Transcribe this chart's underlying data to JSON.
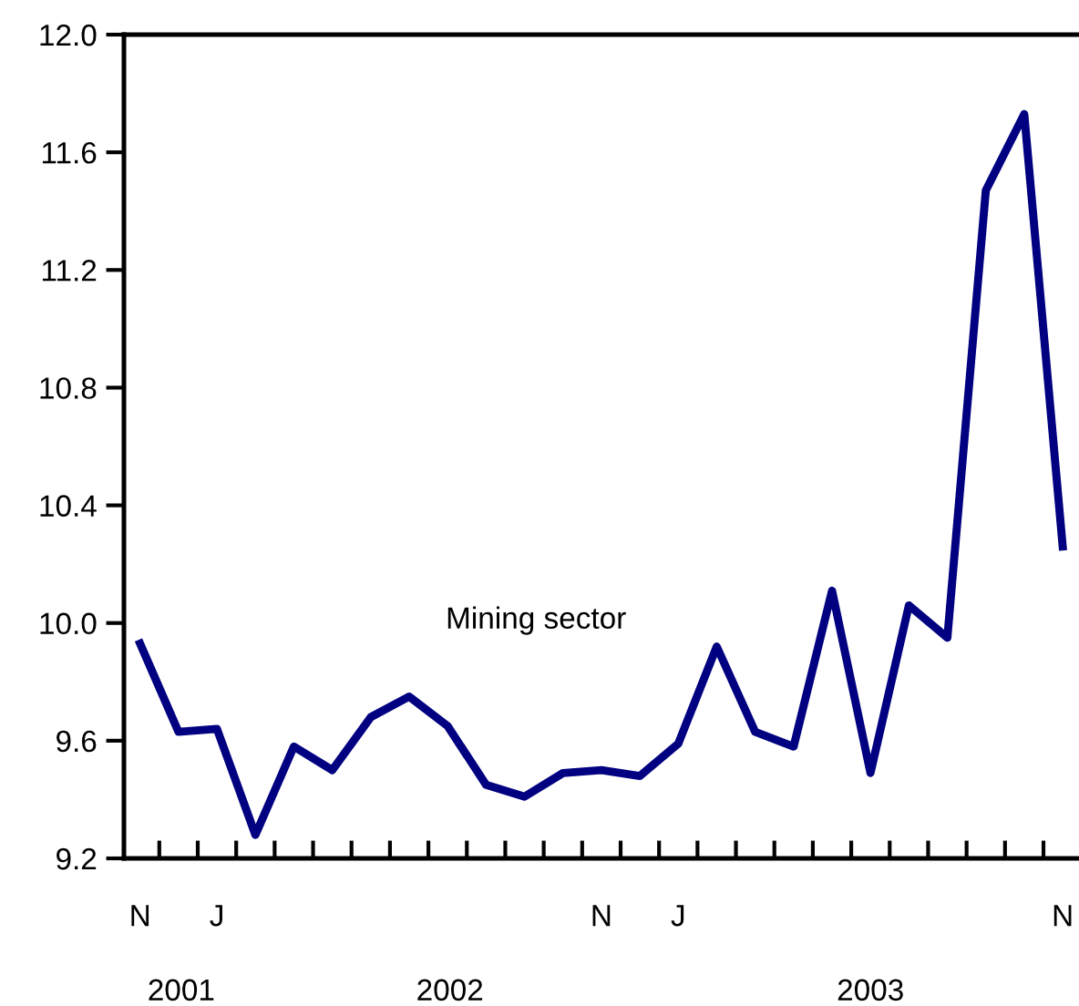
{
  "chart_data": {
    "type": "line",
    "categories": [
      "N",
      null,
      "J",
      null,
      null,
      null,
      null,
      null,
      null,
      null,
      null,
      null,
      "N",
      null,
      "J",
      null,
      null,
      null,
      null,
      null,
      null,
      null,
      null,
      null,
      "N"
    ],
    "series": [
      {
        "name": "Mining sector",
        "color": "#000080",
        "values": [
          9.93,
          9.63,
          9.64,
          9.28,
          9.58,
          9.5,
          9.68,
          9.75,
          9.65,
          9.45,
          9.41,
          9.49,
          9.5,
          9.48,
          9.59,
          9.92,
          9.63,
          9.58,
          10.11,
          9.49,
          10.06,
          9.95,
          11.47,
          11.73,
          10.26
        ]
      }
    ],
    "ylim": [
      9.2,
      12.0
    ],
    "yticks": [
      {
        "value": 9.2,
        "label": "9.2"
      },
      {
        "value": 9.6,
        "label": "9.6"
      },
      {
        "value": 10,
        "label": "10.0"
      },
      {
        "value": 10.4,
        "label": "10.4"
      },
      {
        "value": 10.8,
        "label": "10.8"
      },
      {
        "value": 11.2,
        "label": "11.2"
      },
      {
        "value": 11.6,
        "label": "11.6"
      },
      {
        "value": 12,
        "label": "12.0"
      }
    ],
    "annotations": [
      "2001",
      "2002",
      "2003"
    ],
    "grid": false,
    "legend": false,
    "marker": "none",
    "line_style": "solid"
  }
}
